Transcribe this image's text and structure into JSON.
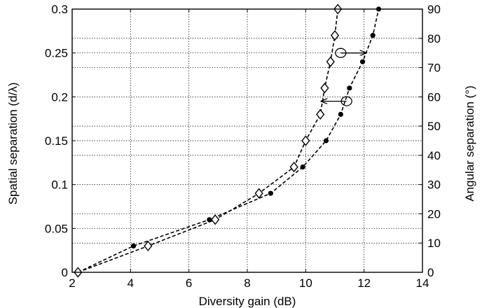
{
  "chart_data": {
    "type": "line",
    "xlabel": "Diversity gain (dB)",
    "ylabel_left": "Spatial separation (d/λ)",
    "ylabel_right": "Angular separation (°)",
    "xlim": [
      2,
      14
    ],
    "ylim_left": [
      0,
      0.3
    ],
    "ylim_right": [
      0,
      90
    ],
    "x_ticks": [
      2,
      4,
      6,
      8,
      10,
      12,
      14
    ],
    "y_left_ticks": [
      0,
      0.05,
      0.1,
      0.15,
      0.2,
      0.25,
      0.3
    ],
    "y_left_tick_labels": [
      "0",
      "0.05",
      "0.1",
      "0.15",
      "0.2",
      "0.25",
      "0.3"
    ],
    "y_right_ticks": [
      0,
      10,
      20,
      30,
      40,
      50,
      60,
      70,
      80,
      90
    ],
    "grid": true,
    "series": [
      {
        "axis": "left",
        "marker": "dot",
        "x": [
          2.2,
          4.1,
          6.7,
          8.8,
          9.9,
          10.7,
          11.2,
          11.5,
          11.95,
          12.3,
          12.5
        ],
        "y": [
          0,
          0.03,
          0.06,
          0.09,
          0.12,
          0.15,
          0.18,
          0.21,
          0.24,
          0.27,
          0.3
        ]
      },
      {
        "axis": "right",
        "marker": "diamond",
        "x": [
          2.2,
          4.6,
          6.9,
          8.4,
          9.6,
          10.0,
          10.5,
          10.65,
          10.85,
          11.0,
          11.1
        ],
        "y": [
          0,
          9,
          18,
          27,
          36,
          45,
          54,
          63,
          72,
          81,
          90
        ]
      }
    ],
    "annotations": [
      {
        "type": "arrow-right",
        "from_series": "diamond",
        "data_x": 11.2,
        "data_y_right": 75,
        "direction": "right"
      },
      {
        "type": "arrow-left",
        "from_series": "dot",
        "data_x": 11.4,
        "data_y_left": 0.195,
        "direction": "left"
      }
    ]
  }
}
